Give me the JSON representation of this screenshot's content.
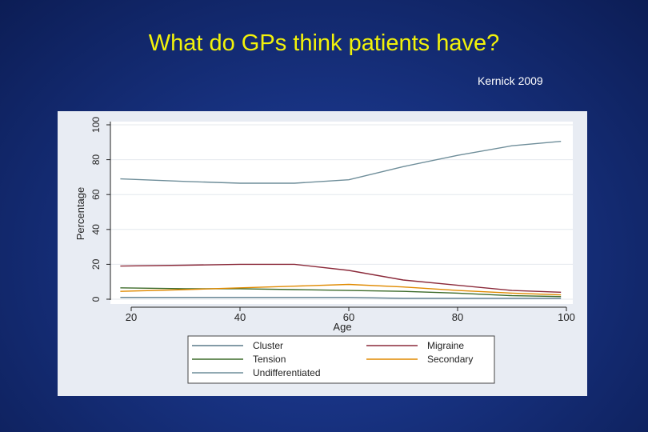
{
  "slide": {
    "title": "What do GPs think patients have?",
    "citation": "Kernick 2009"
  },
  "colors": {
    "title": "#f2f20a",
    "plot_background": "#ffffff",
    "outer_background": "#e8ecf3"
  },
  "chart_data": {
    "type": "line",
    "xlabel": "Age",
    "ylabel": "Percentage",
    "xlim": [
      15,
      100
    ],
    "ylim": [
      0,
      100
    ],
    "xticks": [
      20,
      40,
      60,
      80,
      100
    ],
    "yticks": [
      0,
      20,
      40,
      60,
      80,
      100
    ],
    "grid": true,
    "legend_position": "bottom",
    "x": [
      18,
      30,
      40,
      50,
      60,
      70,
      80,
      90,
      99
    ],
    "series": [
      {
        "name": "Cluster",
        "color": "#5a7a8a",
        "values": [
          1,
          1,
          1,
          1,
          1,
          0.5,
          0.5,
          0.5,
          0.5
        ]
      },
      {
        "name": "Migraine",
        "color": "#8b2a3a",
        "values": [
          19,
          19.5,
          20,
          20,
          16.5,
          11,
          8,
          5,
          4
        ]
      },
      {
        "name": "Tension",
        "color": "#3d6b2a",
        "values": [
          6.5,
          6,
          6,
          5.5,
          5,
          4.5,
          3.5,
          2,
          1.5
        ]
      },
      {
        "name": "Secondary",
        "color": "#e08a00",
        "values": [
          4.5,
          5.5,
          6.5,
          7.5,
          8.5,
          7,
          5,
          3.5,
          2.5
        ]
      },
      {
        "name": "Undifferentiated",
        "color": "#6f8e9a",
        "values": [
          69,
          67.5,
          66.5,
          66.5,
          68.5,
          76,
          82.5,
          88,
          90.5
        ]
      }
    ]
  }
}
